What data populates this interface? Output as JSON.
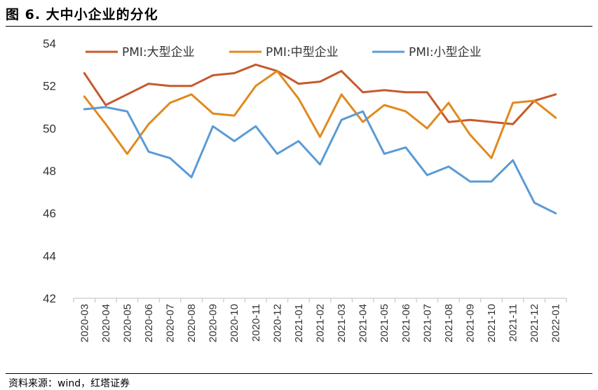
{
  "figure": {
    "title": "图 6. 大中小企业的分化",
    "source": "资料来源：wind，红塔证券"
  },
  "chart_data": {
    "type": "line",
    "title": "图 6. 大中小企业的分化",
    "xlabel": "",
    "ylabel": "",
    "ylim": [
      42,
      54
    ],
    "yticks": [
      42,
      44,
      46,
      48,
      50,
      52,
      54
    ],
    "grid": false,
    "legend_position": "top",
    "categories": [
      "2020-03",
      "2020-04",
      "2020-05",
      "2020-06",
      "2020-07",
      "2020-08",
      "2020-09",
      "2020-10",
      "2020-11",
      "2020-12",
      "2021-01",
      "2021-02",
      "2021-03",
      "2021-04",
      "2021-05",
      "2021-06",
      "2021-07",
      "2021-08",
      "2021-09",
      "2021-10",
      "2021-11",
      "2021-12",
      "2022-01"
    ],
    "series": [
      {
        "name": "PMI:大型企业",
        "color": "#C65A2D",
        "values": [
          52.6,
          51.1,
          51.6,
          52.1,
          52.0,
          52.0,
          52.5,
          52.6,
          53.0,
          52.7,
          52.1,
          52.2,
          52.7,
          51.7,
          51.8,
          51.7,
          51.7,
          50.3,
          50.4,
          50.3,
          50.2,
          51.3,
          51.6
        ]
      },
      {
        "name": "PMI:中型企业",
        "color": "#E08A1E",
        "values": [
          51.5,
          50.2,
          48.8,
          50.2,
          51.2,
          51.6,
          50.7,
          50.6,
          52.0,
          52.7,
          51.4,
          49.6,
          51.6,
          50.3,
          51.1,
          50.8,
          50.0,
          51.2,
          49.7,
          48.6,
          51.2,
          51.3,
          50.5
        ]
      },
      {
        "name": "PMI:小型企业",
        "color": "#5B9BD5",
        "values": [
          50.9,
          51.0,
          50.8,
          48.9,
          48.6,
          47.7,
          50.1,
          49.4,
          50.1,
          48.8,
          49.4,
          48.3,
          50.4,
          50.8,
          48.8,
          49.1,
          47.8,
          48.2,
          47.5,
          47.5,
          48.5,
          46.5,
          46.0
        ]
      }
    ]
  }
}
